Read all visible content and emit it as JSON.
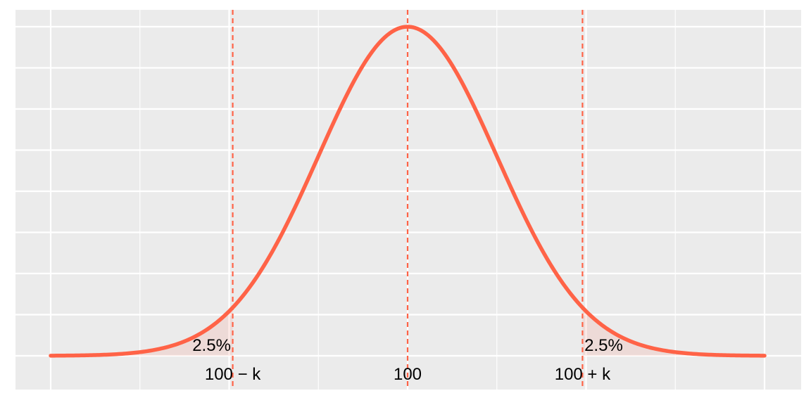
{
  "chart_data": {
    "type": "line",
    "title": "",
    "xlabel": "",
    "ylabel": "",
    "distribution": {
      "mean": 100,
      "sd": 1,
      "x_range": [
        96,
        104
      ]
    },
    "reference_lines": [
      {
        "x": 98.04,
        "label": "100 − k",
        "linestyle": "dashed"
      },
      {
        "x": 100,
        "label": "100",
        "linestyle": "dashed"
      },
      {
        "x": 101.96,
        "label": "100 + k",
        "linestyle": "dashed"
      }
    ],
    "shaded_tails": [
      {
        "from": 96,
        "to": 98.04,
        "label": "2.5%"
      },
      {
        "from": 101.96,
        "to": 104,
        "label": "2.5%"
      }
    ],
    "grid": true,
    "y_tick_labels_shown": false,
    "colors": {
      "curve": "#ff6347",
      "panel": "#ebebeb",
      "grid": "#ffffff",
      "text": "#000000"
    }
  }
}
